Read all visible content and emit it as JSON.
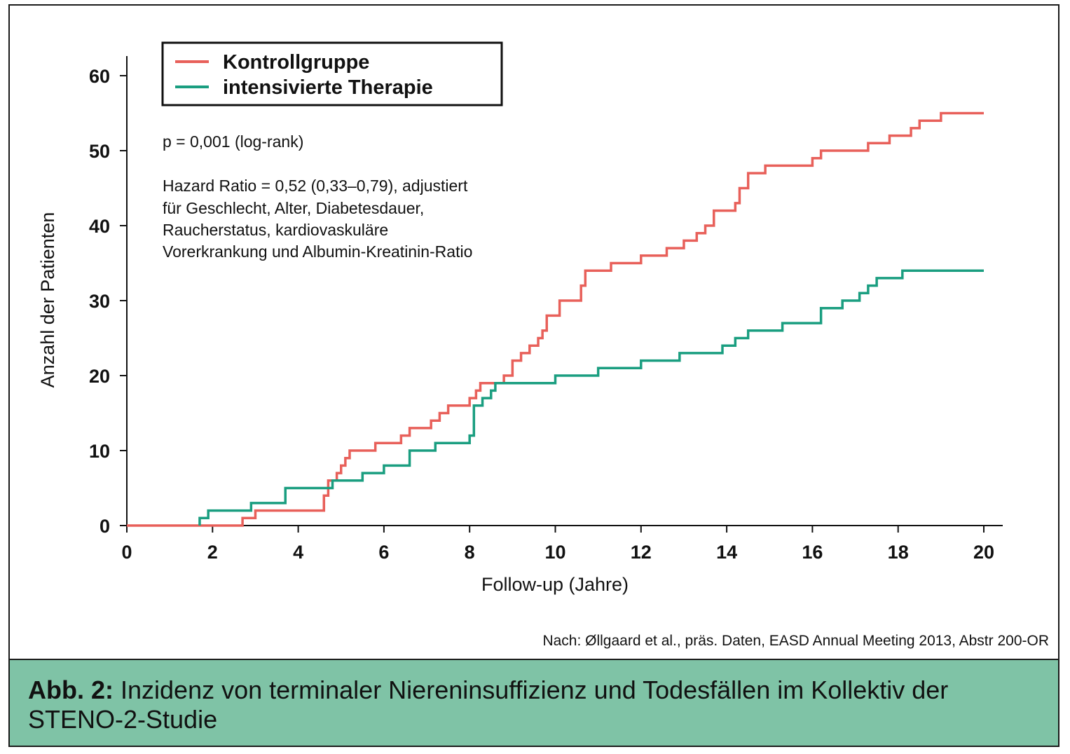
{
  "chart_data": {
    "type": "line",
    "subtype": "step",
    "xlabel": "Follow-up (Jahre)",
    "ylabel": "Anzahl der Patienten",
    "xlim": [
      0,
      20
    ],
    "ylim": [
      0,
      60
    ],
    "xticks": [
      0,
      2,
      4,
      6,
      8,
      10,
      12,
      14,
      16,
      18,
      20
    ],
    "yticks": [
      0,
      10,
      20,
      30,
      40,
      50,
      60
    ],
    "grid": false,
    "legend_position": "top-left",
    "series": [
      {
        "name": "Kontrollgruppe",
        "color": "#e8605a",
        "points": [
          [
            0,
            0
          ],
          [
            2.7,
            1
          ],
          [
            3.0,
            2
          ],
          [
            4.6,
            4
          ],
          [
            4.7,
            6
          ],
          [
            4.9,
            7
          ],
          [
            5.0,
            8
          ],
          [
            5.1,
            9
          ],
          [
            5.2,
            10
          ],
          [
            5.5,
            10
          ],
          [
            5.8,
            11
          ],
          [
            6.4,
            12
          ],
          [
            6.6,
            13
          ],
          [
            7.1,
            14
          ],
          [
            7.3,
            15
          ],
          [
            7.5,
            16
          ],
          [
            7.9,
            16
          ],
          [
            8.0,
            17
          ],
          [
            8.15,
            18
          ],
          [
            8.25,
            19
          ],
          [
            8.7,
            19
          ],
          [
            8.8,
            20
          ],
          [
            9.0,
            22
          ],
          [
            9.2,
            23
          ],
          [
            9.4,
            24
          ],
          [
            9.6,
            25
          ],
          [
            9.7,
            26
          ],
          [
            9.8,
            28
          ],
          [
            10.1,
            30
          ],
          [
            10.6,
            32
          ],
          [
            10.7,
            34
          ],
          [
            11.3,
            35
          ],
          [
            12.0,
            36
          ],
          [
            12.6,
            37
          ],
          [
            13.0,
            38
          ],
          [
            13.3,
            39
          ],
          [
            13.5,
            40
          ],
          [
            13.7,
            42
          ],
          [
            14.2,
            43
          ],
          [
            14.3,
            45
          ],
          [
            14.5,
            47
          ],
          [
            14.9,
            48
          ],
          [
            16.0,
            49
          ],
          [
            16.2,
            50
          ],
          [
            17.1,
            50
          ],
          [
            17.3,
            51
          ],
          [
            17.8,
            52
          ],
          [
            18.3,
            53
          ],
          [
            18.5,
            54
          ],
          [
            19.0,
            55
          ],
          [
            20,
            55
          ]
        ]
      },
      {
        "name": "intensivierte Therapie",
        "color": "#1a9e80",
        "points": [
          [
            1.7,
            0
          ],
          [
            1.7,
            1
          ],
          [
            1.9,
            2
          ],
          [
            2.9,
            3
          ],
          [
            3.7,
            5
          ],
          [
            4.8,
            6
          ],
          [
            5.5,
            7
          ],
          [
            6.0,
            8
          ],
          [
            6.6,
            10
          ],
          [
            7.2,
            11
          ],
          [
            8.0,
            12
          ],
          [
            8.1,
            16
          ],
          [
            8.3,
            17
          ],
          [
            8.5,
            18
          ],
          [
            8.6,
            19
          ],
          [
            10.0,
            20
          ],
          [
            11.0,
            21
          ],
          [
            12.0,
            22
          ],
          [
            12.9,
            23
          ],
          [
            13.9,
            24
          ],
          [
            14.2,
            25
          ],
          [
            14.5,
            26
          ],
          [
            15.3,
            27
          ],
          [
            16.2,
            29
          ],
          [
            16.7,
            30
          ],
          [
            17.1,
            31
          ],
          [
            17.3,
            32
          ],
          [
            17.5,
            33
          ],
          [
            18.1,
            34
          ],
          [
            20,
            34
          ]
        ]
      }
    ]
  },
  "annotations": {
    "p_value": "p = 0,001 (log-rank)",
    "hazard_lines": [
      "Hazard Ratio = 0,52 (0,33–0,79), adjustiert",
      "für Geschlecht, Alter, Diabetesdauer,",
      "Raucherstatus, kardiovaskuläre",
      "Vorerkrankung und Albumin-Kreatinin-Ratio"
    ]
  },
  "source": "Nach: Øllgaard et al., präs. Daten, EASD Annual Meeting 2013, Abstr 200-OR",
  "caption": {
    "label": "Abb. 2:",
    "text": " Inzidenz von terminaler Niereninsuffizienz und Todesfällen im Kollektiv der STENO-2-Studie"
  },
  "colors": {
    "caption_background": "#7fc3a6",
    "frame_border": "#1a1a1a"
  }
}
